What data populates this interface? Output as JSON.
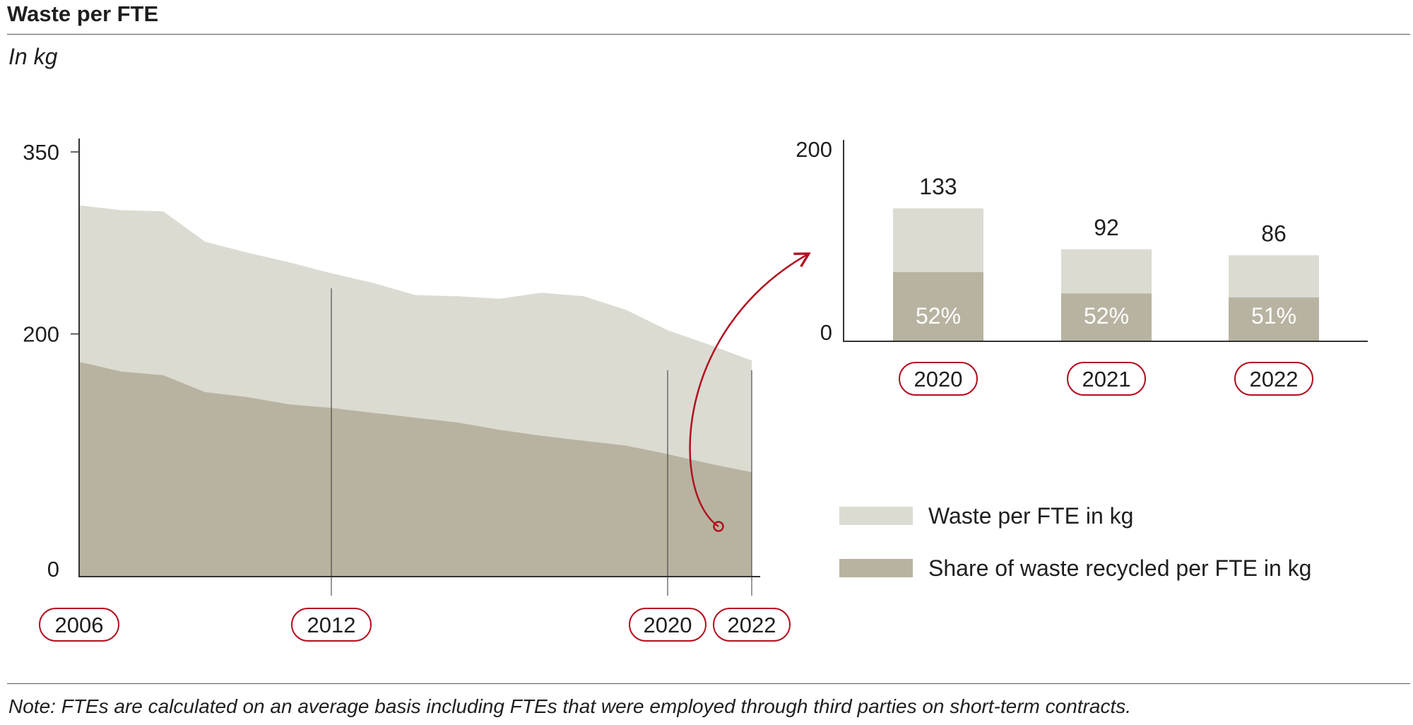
{
  "title": "Waste per FTE",
  "subtitle": "In kg",
  "note": "Note: FTEs are calculated on an average basis including FTEs that were employed through third parties on short-term contracts.",
  "colors": {
    "waste": "#dbdbd1",
    "recycled": "#b8b3a1",
    "highlight": "#b30f1f",
    "axis": "#333333",
    "label_light": "#ffffff"
  },
  "chart_data": [
    {
      "type": "area",
      "stacked": false,
      "x": [
        2006,
        2007,
        2008,
        2009,
        2010,
        2011,
        2012,
        2013,
        2014,
        2015,
        2016,
        2017,
        2018,
        2019,
        2020,
        2021,
        2022
      ],
      "series": [
        {
          "name": "Waste per FTE in kg",
          "values": [
            306,
            302,
            301,
            276,
            267,
            259,
            250,
            242,
            232,
            231,
            229,
            234,
            231,
            220,
            203,
            191,
            178
          ]
        },
        {
          "name": "Share of waste recycled per FTE in kg",
          "values": [
            177,
            169,
            166,
            152,
            148,
            142,
            139,
            135,
            131,
            127,
            121,
            116,
            112,
            108,
            101,
            93,
            86
          ]
        }
      ],
      "x_tick_labels": [
        "2006",
        "2012",
        "2020",
        "2022"
      ],
      "y_ticks": [
        0,
        200,
        350
      ],
      "ylim": [
        0,
        350
      ],
      "grid": false,
      "legend": "right"
    },
    {
      "type": "bar",
      "stacked": true,
      "categories": [
        "2020",
        "2021",
        "2022"
      ],
      "totals": [
        133,
        92,
        86
      ],
      "recycled_share_labels": [
        "52%",
        "52%",
        "51%"
      ],
      "recycled_share": [
        0.52,
        0.52,
        0.51
      ],
      "y_ticks": [
        0,
        200
      ],
      "ylim": [
        0,
        200
      ]
    }
  ],
  "legend": [
    {
      "label": "Waste per FTE in kg",
      "color": "#dbdbd1"
    },
    {
      "label": "Share of waste recycled per FTE in kg",
      "color": "#b8b3a1"
    }
  ]
}
